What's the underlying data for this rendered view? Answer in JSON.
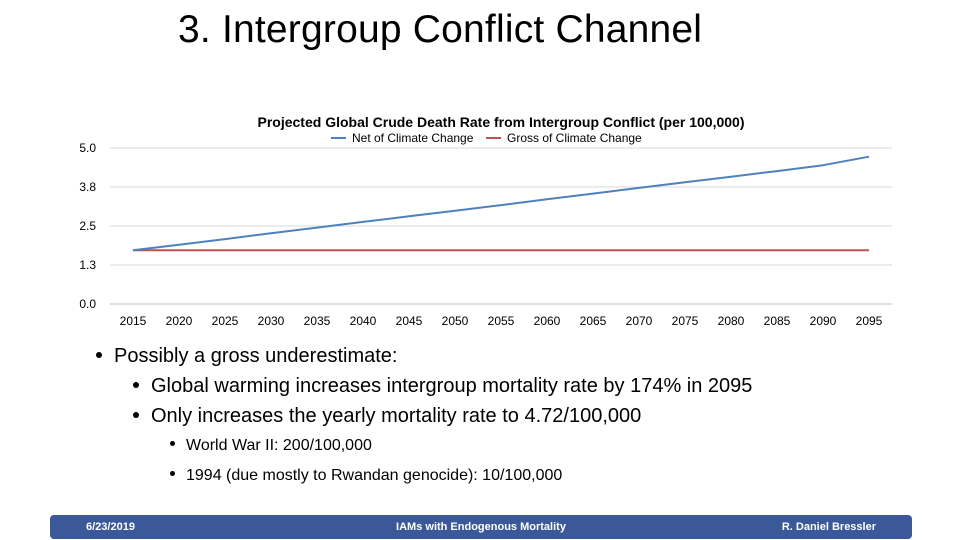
{
  "slide": {
    "title": "3. Intergroup Conflict Channel"
  },
  "chart_data": {
    "type": "line",
    "title": "Projected Global Crude Death Rate from Intergroup Conflict (per 100,000)",
    "xlabel": "",
    "ylabel": "",
    "x": [
      2015,
      2020,
      2025,
      2030,
      2035,
      2040,
      2045,
      2050,
      2055,
      2060,
      2065,
      2070,
      2075,
      2080,
      2085,
      2090,
      2095
    ],
    "x_tick_labels": [
      "2015",
      "2020",
      "2025",
      "2030",
      "2035",
      "2040",
      "2045",
      "2050",
      "2055",
      "2060",
      "2065",
      "2070",
      "2075",
      "2080",
      "2085",
      "2090",
      "2095"
    ],
    "y_tick_labels": [
      "5.0",
      "3.8",
      "2.5",
      "1.3",
      "0.0"
    ],
    "yticks": [
      5.0,
      3.75,
      2.5,
      1.25,
      0.0
    ],
    "ylim": [
      0,
      5
    ],
    "grid": true,
    "legend_position": "top",
    "series": [
      {
        "name": "Net of Climate Change",
        "color": "#4f81bd",
        "values": [
          1.72,
          1.9,
          2.08,
          2.27,
          2.45,
          2.63,
          2.81,
          2.99,
          3.17,
          3.36,
          3.54,
          3.72,
          3.9,
          4.08,
          4.26,
          4.45,
          4.72
        ]
      },
      {
        "name": "Gross of Climate Change",
        "color": "#c0504d",
        "values": [
          1.72,
          1.72,
          1.72,
          1.72,
          1.72,
          1.72,
          1.72,
          1.72,
          1.72,
          1.72,
          1.72,
          1.72,
          1.72,
          1.72,
          1.72,
          1.72,
          1.72
        ]
      }
    ]
  },
  "bullets": {
    "level1": "Possibly a gross underestimate:",
    "level2": [
      "Global warming increases intergroup mortality rate by 174% in 2095",
      "Only increases the yearly mortality rate to 4.72/100,000"
    ],
    "level3": [
      "World War II: 200/100,000",
      "1994 (due mostly to Rwandan genocide): 10/100,000"
    ]
  },
  "footer": {
    "date": "6/23/2019",
    "center": "IAMs with Endogenous Mortality",
    "author": "R. Daniel Bressler",
    "background": "#3b5998"
  }
}
